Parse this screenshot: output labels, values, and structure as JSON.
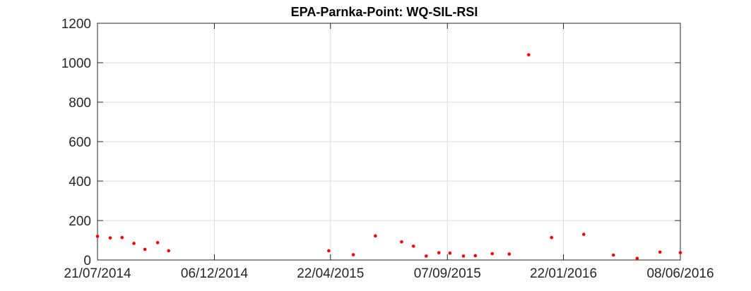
{
  "chart_data": {
    "type": "scatter",
    "title": "EPA-Parnka-Point: WQ-SIL-RSI",
    "xlabel": "",
    "ylabel": "",
    "x_axis": {
      "kind": "date",
      "range": [
        "2014-07-21",
        "2016-06-08"
      ],
      "ticks": [
        {
          "date": "2014-07-21",
          "label": "21/07/2014"
        },
        {
          "date": "2014-12-06",
          "label": "06/12/2014"
        },
        {
          "date": "2015-04-22",
          "label": "22/04/2015"
        },
        {
          "date": "2015-09-07",
          "label": "07/09/2015"
        },
        {
          "date": "2016-01-22",
          "label": "22/01/2016"
        },
        {
          "date": "2016-06-08",
          "label": "08/06/2016"
        }
      ]
    },
    "y_axis": {
      "range": [
        0,
        1200
      ],
      "ticks": [
        0,
        200,
        400,
        600,
        800,
        1000,
        1200
      ]
    },
    "grid": true,
    "marker_color": "#ff0000",
    "series": [
      {
        "name": "WQ-SIL-RSI",
        "points": [
          {
            "x": "2014-07-21",
            "y": 120
          },
          {
            "x": "2014-08-05",
            "y": 112
          },
          {
            "x": "2014-08-19",
            "y": 114
          },
          {
            "x": "2014-09-02",
            "y": 84
          },
          {
            "x": "2014-09-15",
            "y": 54
          },
          {
            "x": "2014-09-30",
            "y": 88
          },
          {
            "x": "2014-10-13",
            "y": 47
          },
          {
            "x": "2015-04-20",
            "y": 47
          },
          {
            "x": "2015-05-19",
            "y": 27
          },
          {
            "x": "2015-06-14",
            "y": 122
          },
          {
            "x": "2015-07-15",
            "y": 92
          },
          {
            "x": "2015-07-29",
            "y": 70
          },
          {
            "x": "2015-08-13",
            "y": 20
          },
          {
            "x": "2015-08-28",
            "y": 37
          },
          {
            "x": "2015-09-10",
            "y": 35
          },
          {
            "x": "2015-09-26",
            "y": 20
          },
          {
            "x": "2015-10-10",
            "y": 22
          },
          {
            "x": "2015-10-30",
            "y": 32
          },
          {
            "x": "2015-11-19",
            "y": 30
          },
          {
            "x": "2015-12-12",
            "y": 1040
          },
          {
            "x": "2016-01-08",
            "y": 114
          },
          {
            "x": "2016-02-15",
            "y": 130
          },
          {
            "x": "2016-03-21",
            "y": 25
          },
          {
            "x": "2016-04-18",
            "y": 8
          },
          {
            "x": "2016-05-15",
            "y": 40
          },
          {
            "x": "2016-06-08",
            "y": 37
          }
        ]
      }
    ]
  }
}
